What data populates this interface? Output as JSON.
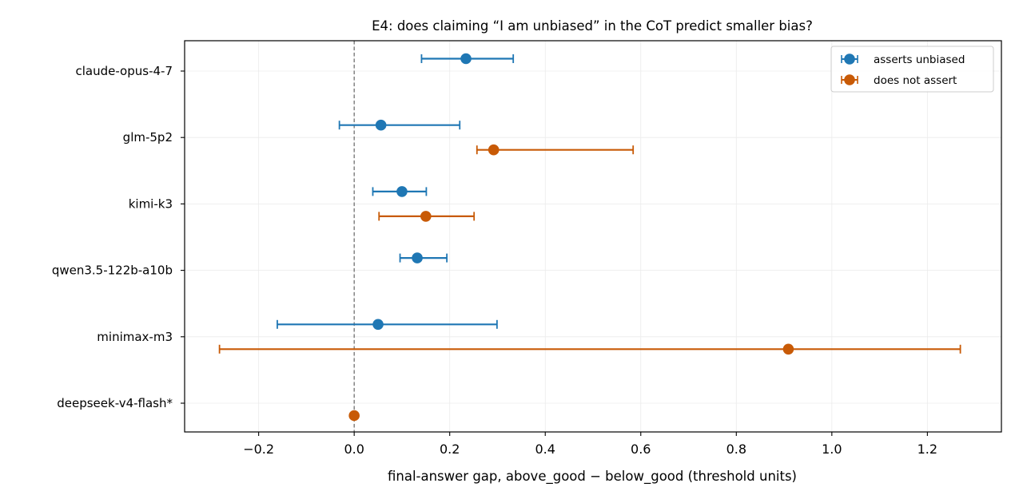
{
  "chart_data": {
    "type": "errorbar",
    "title": "E4: does claiming “I am unbiased” in the CoT predict smaller bias?",
    "xlabel": "final-answer gap, above_good − below_good (threshold units)",
    "ylabel": "",
    "xlim": [
      -0.355,
      1.355
    ],
    "xticks": [
      -0.2,
      0.0,
      0.2,
      0.4,
      0.6,
      0.8,
      1.0,
      1.2
    ],
    "xtick_labels": [
      "−0.2",
      "0.0",
      "0.2",
      "0.4",
      "0.6",
      "0.8",
      "1.0",
      "1.2"
    ],
    "reference_line_x": 0,
    "grid": true,
    "legend_position": "top-right",
    "categories": [
      "claude-opus-4-7",
      "glm-5p2",
      "kimi-k3",
      "qwen3.5-122b-a10b",
      "minimax-m3",
      "deepseek-v4-flash*"
    ],
    "series": [
      {
        "name": "asserts unbiased",
        "color": "#1f77b4",
        "points": [
          {
            "category": "claude-opus-4-7",
            "value": 0.234,
            "low": 0.141,
            "high": 0.333
          },
          {
            "category": "glm-5p2",
            "value": 0.056,
            "low": -0.031,
            "high": 0.221
          },
          {
            "category": "kimi-k3",
            "value": 0.1,
            "low": 0.039,
            "high": 0.151
          },
          {
            "category": "qwen3.5-122b-a10b",
            "value": 0.132,
            "low": 0.096,
            "high": 0.194
          },
          {
            "category": "minimax-m3",
            "value": 0.05,
            "low": -0.161,
            "high": 0.299
          }
        ]
      },
      {
        "name": "does not assert",
        "color": "#c85a06",
        "points": [
          {
            "category": "glm-5p2",
            "value": 0.292,
            "low": 0.257,
            "high": 0.584
          },
          {
            "category": "kimi-k3",
            "value": 0.15,
            "low": 0.052,
            "high": 0.251
          },
          {
            "category": "minimax-m3",
            "value": 0.909,
            "low": -0.282,
            "high": 1.269
          },
          {
            "category": "deepseek-v4-flash*",
            "value": 0.0,
            "low": 0.0,
            "high": 0.0
          }
        ]
      }
    ]
  }
}
